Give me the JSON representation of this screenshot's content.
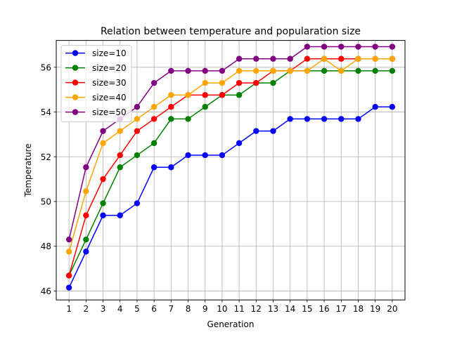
{
  "chart_data": {
    "type": "line",
    "title": "Relation between temperature and popularation size",
    "xlabel": "Generation",
    "ylabel": "Temperature",
    "x": [
      1,
      2,
      3,
      4,
      5,
      6,
      7,
      8,
      9,
      10,
      11,
      12,
      13,
      14,
      15,
      16,
      17,
      18,
      19,
      20
    ],
    "xlim": [
      0.25,
      20.75
    ],
    "ylim": [
      45.6,
      57.2
    ],
    "yticks": [
      46,
      48,
      50,
      52,
      54,
      56
    ],
    "grid": true,
    "legend_position": "upper-left",
    "marker": "circle",
    "series": [
      {
        "name": "size=10",
        "color": "#0000ff",
        "values": [
          46.15,
          47.76,
          49.38,
          49.38,
          49.92,
          51.53,
          51.53,
          52.07,
          52.07,
          52.07,
          52.61,
          53.15,
          53.15,
          53.69,
          53.69,
          53.69,
          53.69,
          53.69,
          54.23,
          54.23
        ]
      },
      {
        "name": "size=20",
        "color": "#008000",
        "values": [
          46.69,
          48.3,
          49.92,
          51.53,
          52.07,
          52.61,
          53.69,
          53.69,
          54.23,
          54.76,
          54.76,
          55.3,
          55.3,
          55.84,
          55.84,
          55.84,
          55.84,
          55.84,
          55.84,
          55.84
        ]
      },
      {
        "name": "size=30",
        "color": "#ff0000",
        "values": [
          46.69,
          49.38,
          51.0,
          52.07,
          53.15,
          53.69,
          54.23,
          54.76,
          54.76,
          54.76,
          55.3,
          55.3,
          55.84,
          55.84,
          56.38,
          56.38,
          56.38,
          56.38,
          56.38,
          56.38
        ]
      },
      {
        "name": "size=40",
        "color": "#ffa500",
        "values": [
          47.76,
          50.46,
          52.61,
          53.15,
          53.69,
          54.23,
          54.76,
          54.76,
          55.3,
          55.3,
          55.84,
          55.84,
          55.84,
          55.84,
          55.84,
          56.38,
          55.84,
          56.38,
          56.38,
          56.38
        ]
      },
      {
        "name": "size=50",
        "color": "#800080",
        "values": [
          48.3,
          51.53,
          53.15,
          53.69,
          54.23,
          55.3,
          55.84,
          55.84,
          55.84,
          55.84,
          56.38,
          56.38,
          56.38,
          56.38,
          56.92,
          56.92,
          56.92,
          56.92,
          56.92,
          56.92
        ]
      }
    ]
  }
}
